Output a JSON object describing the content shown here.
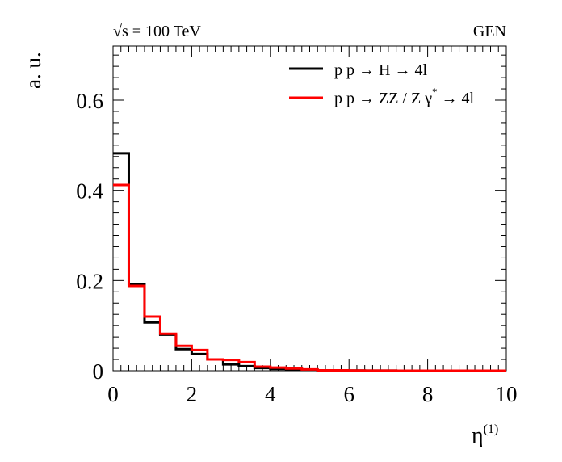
{
  "chart_data": {
    "type": "line",
    "title": "",
    "energy_label": "√s = 100 TeV",
    "sqrt_symbol": "√",
    "energy_text": "s = 100 TeV",
    "tag": "GEN",
    "xlabel_main": "η",
    "xlabel_sup": "(1)",
    "ylabel": "a. u.",
    "xlim": [
      0,
      10
    ],
    "ylim": [
      0,
      0.72
    ],
    "x_ticks": [
      0,
      2,
      4,
      6,
      8,
      10
    ],
    "x_tick_labels": [
      "0",
      "2",
      "4",
      "6",
      "8",
      "10"
    ],
    "y_ticks": [
      0,
      0.2,
      0.4,
      0.6
    ],
    "y_tick_labels": [
      "0",
      "0.2",
      "0.4",
      "0.6"
    ],
    "grid": false,
    "legend_position": "top-right",
    "bin_edges": [
      0,
      0.4,
      0.8,
      1.2,
      1.6,
      2.0,
      2.4,
      2.8,
      3.2,
      3.6,
      4.0,
      4.4,
      4.8,
      5.2,
      5.6,
      6.0,
      6.4,
      6.8,
      7.2,
      7.6,
      8.0,
      8.4,
      8.8,
      9.2,
      9.6,
      10.0
    ],
    "series": [
      {
        "name": "p p → H → 4l",
        "legend_parts": [
          "p p → H → 4l"
        ],
        "color": "#000000",
        "values": [
          0.482,
          0.192,
          0.107,
          0.08,
          0.048,
          0.037,
          0.025,
          0.014,
          0.01,
          0.006,
          0.004,
          0.003,
          0.002,
          0.001,
          0.001,
          0.0005,
          0.0003,
          0.0002,
          0.0001,
          0.0001,
          0.0001,
          0.0,
          0.0,
          0.0,
          0.0
        ]
      },
      {
        "name": "p p → ZZ / Z γ* → 4l",
        "legend_parts": [
          "p p → ZZ / Z γ",
          "*",
          " → 4l"
        ],
        "color": "#ff0000",
        "values": [
          0.412,
          0.188,
          0.12,
          0.082,
          0.055,
          0.046,
          0.025,
          0.024,
          0.019,
          0.009,
          0.007,
          0.005,
          0.003,
          0.001,
          0.001,
          0.0005,
          0.0003,
          0.0002,
          0.0001,
          0.0001,
          0.0001,
          0.0,
          0.0,
          0.0,
          0.0
        ]
      }
    ]
  }
}
